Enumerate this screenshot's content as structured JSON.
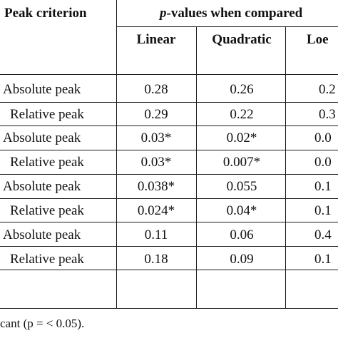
{
  "header": {
    "peak_criterion": "Peak criterion",
    "pvalues_prefix": "p",
    "pvalues_rest": "-values when compared",
    "columns": [
      "Linear",
      "Quadratic",
      "Loe"
    ]
  },
  "rows": [
    {
      "label": "Absolute peak",
      "values": [
        "0.28",
        "0.26",
        "0.2"
      ]
    },
    {
      "label": "Relative peak",
      "values": [
        "0.29",
        "0.22",
        "0.3"
      ]
    },
    {
      "label": "Absolute peak",
      "values": [
        "0.03*",
        "0.02*",
        "0.0"
      ]
    },
    {
      "label": "Relative peak",
      "values": [
        "0.03*",
        "0.007*",
        "0.0"
      ]
    },
    {
      "label": "Absolute peak",
      "values": [
        "0.038*",
        "0.055",
        "0.1"
      ]
    },
    {
      "label": "Relative peak",
      "values": [
        "0.024*",
        "0.04*",
        "0.1"
      ]
    },
    {
      "label": "Absolute peak",
      "values": [
        "0.11",
        "0.06",
        "0.4"
      ]
    },
    {
      "label": "Relative peak",
      "values": [
        "0.18",
        "0.09",
        "0.1"
      ]
    }
  ],
  "footnote": "cant (p = < 0.05)."
}
